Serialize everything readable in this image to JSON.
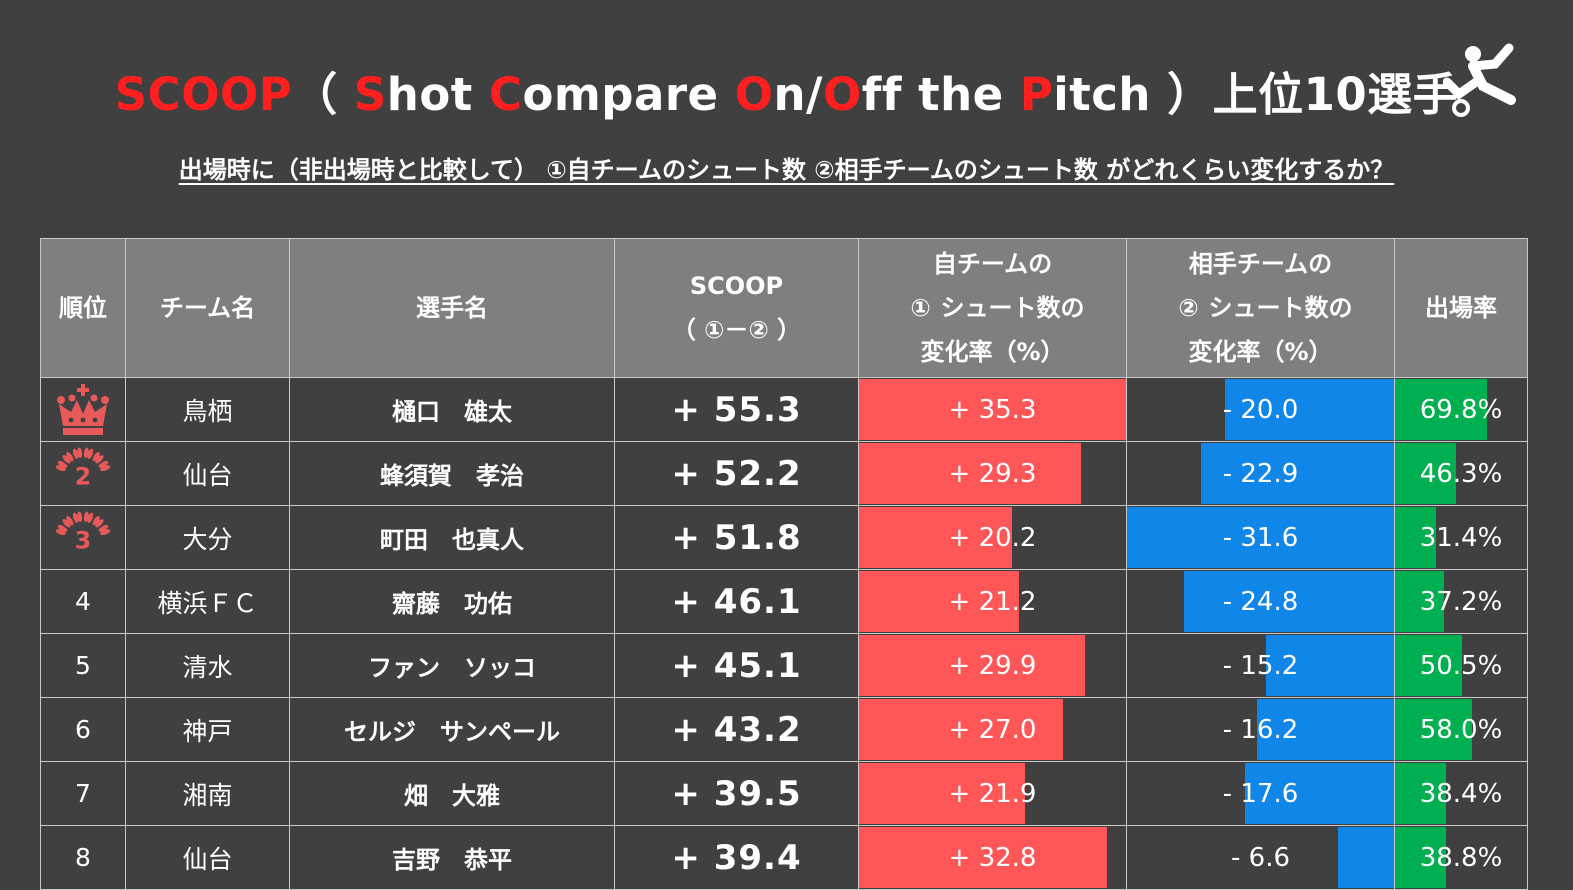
{
  "title": {
    "parts": [
      {
        "text": "SCOOP",
        "red": true
      },
      {
        "text": "（ ",
        "red": false
      },
      {
        "text": "S",
        "red": true
      },
      {
        "text": "hot ",
        "red": false
      },
      {
        "text": "C",
        "red": true
      },
      {
        "text": "ompare ",
        "red": false
      },
      {
        "text": "O",
        "red": true
      },
      {
        "text": "n/",
        "red": false
      },
      {
        "text": "O",
        "red": true
      },
      {
        "text": "ff the ",
        "red": false
      },
      {
        "text": "P",
        "red": true
      },
      {
        "text": "itch ）上位10選手",
        "red": false
      }
    ]
  },
  "subtitle": "出場時に（非出場時と比較して） ①自チームのシュート数 ②相手チームのシュート数 がどれくらい変化するか？",
  "headers": {
    "rank": "順位",
    "team": "チーム名",
    "player": "選手名",
    "scoop_line1": "SCOOP",
    "scoop_line2": "（ ①－② ）",
    "own_num": "①",
    "own_line1": "自チームの",
    "own_line2": "シュート数の",
    "own_line3": "変化率（%）",
    "opp_num": "②",
    "opp_line1": "相手チームの",
    "opp_line2": "シュート数の",
    "opp_line3": "変化率（%）",
    "rate": "出場率"
  },
  "colors": {
    "background": "#404040",
    "header_bg": "#7f7f7f",
    "accent_red": "#ff1f1f",
    "own_bar": "#ff5757",
    "opp_bar": "#0f86e8",
    "rate_bar": "#00b050",
    "rank_badge": "#e85a5a"
  },
  "rows": [
    {
      "rank": "1",
      "rank_icon": "crown-icon",
      "team": "鳥栖",
      "player": "樋口　雄太",
      "scoop": "+ 55.3",
      "own_label": "+ 35.3",
      "own_value": 35.3,
      "opp_label": "- 20.0",
      "opp_value": -20.0,
      "rate_label": "69.8%",
      "rate_value": 69.8
    },
    {
      "rank": "2",
      "rank_icon": "laurel-2-icon",
      "team": "仙台",
      "player": "蜂須賀　孝治",
      "scoop": "+ 52.2",
      "own_label": "+ 29.3",
      "own_value": 29.3,
      "opp_label": "- 22.9",
      "opp_value": -22.9,
      "rate_label": "46.3%",
      "rate_value": 46.3
    },
    {
      "rank": "3",
      "rank_icon": "laurel-3-icon",
      "team": "大分",
      "player": "町田　也真人",
      "scoop": "+ 51.8",
      "own_label": "+ 20.2",
      "own_value": 20.2,
      "opp_label": "- 31.6",
      "opp_value": -31.6,
      "rate_label": "31.4%",
      "rate_value": 31.4
    },
    {
      "rank": "4",
      "rank_icon": "",
      "team": "横浜ＦＣ",
      "player": "齋藤　功佑",
      "scoop": "+ 46.1",
      "own_label": "+ 21.2",
      "own_value": 21.2,
      "opp_label": "- 24.8",
      "opp_value": -24.8,
      "rate_label": "37.2%",
      "rate_value": 37.2
    },
    {
      "rank": "5",
      "rank_icon": "",
      "team": "清水",
      "player": "ファン　ソッコ",
      "scoop": "+ 45.1",
      "own_label": "+ 29.9",
      "own_value": 29.9,
      "opp_label": "- 15.2",
      "opp_value": -15.2,
      "rate_label": "50.5%",
      "rate_value": 50.5
    },
    {
      "rank": "6",
      "rank_icon": "",
      "team": "神戸",
      "player": "セルジ　サンペール",
      "scoop": "+ 43.2",
      "own_label": "+ 27.0",
      "own_value": 27.0,
      "opp_label": "- 16.2",
      "opp_value": -16.2,
      "rate_label": "58.0%",
      "rate_value": 58.0
    },
    {
      "rank": "7",
      "rank_icon": "",
      "team": "湘南",
      "player": "畑　大雅",
      "scoop": "+ 39.5",
      "own_label": "+ 21.9",
      "own_value": 21.9,
      "opp_label": "- 17.6",
      "opp_value": -17.6,
      "rate_label": "38.4%",
      "rate_value": 38.4
    },
    {
      "rank": "8",
      "rank_icon": "",
      "team": "仙台",
      "player": "吉野　恭平",
      "scoop": "+ 39.4",
      "own_label": "+ 32.8",
      "own_value": 32.8,
      "opp_label": "- 6.6",
      "opp_value": -6.6,
      "rate_label": "38.8%",
      "rate_value": 38.8
    }
  ]
}
